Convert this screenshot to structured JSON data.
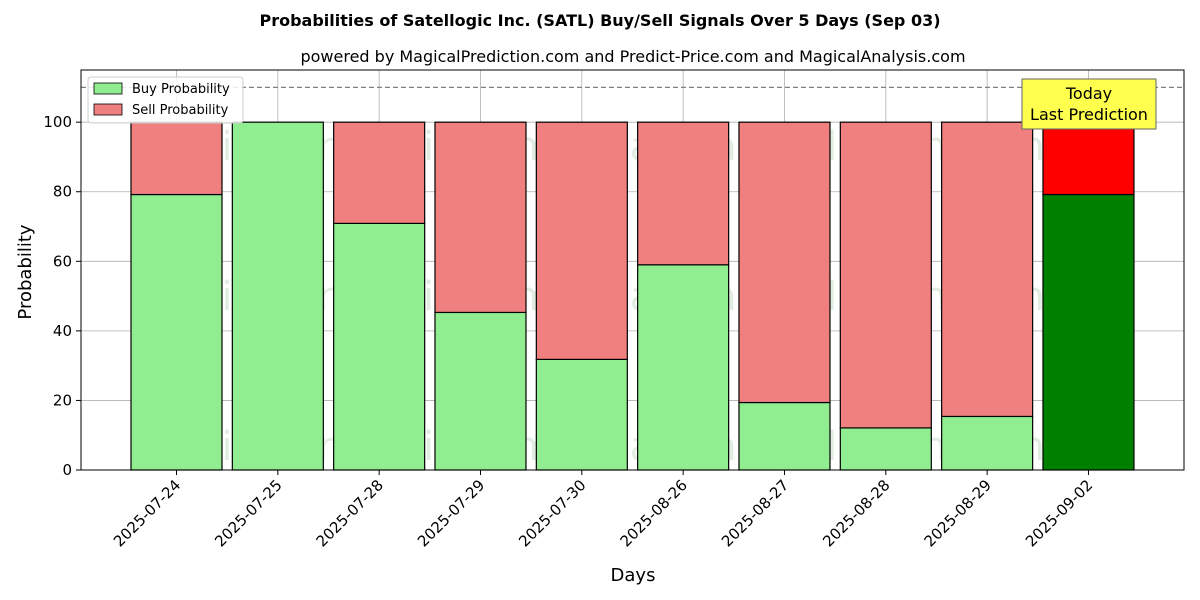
{
  "chart_data": {
    "type": "bar",
    "stacked": true,
    "title": "Probabilities of Satellogic Inc. (SATL) Buy/Sell Signals Over 5 Days (Sep 03)",
    "subtitle": "powered by MagicalPrediction.com and Predict-Price.com and MagicalAnalysis.com",
    "xlabel": "Days",
    "ylabel": "Probability",
    "ylim": [
      0,
      115
    ],
    "yticks": [
      0,
      20,
      40,
      60,
      80,
      100
    ],
    "grid": true,
    "legend_position": "top-left",
    "reference_line": 110,
    "categories": [
      "2025-07-24",
      "2025-07-25",
      "2025-07-28",
      "2025-07-29",
      "2025-07-30",
      "2025-08-26",
      "2025-08-27",
      "2025-08-28",
      "2025-08-29",
      "2025-09-02"
    ],
    "series": [
      {
        "name": "Buy Probability",
        "values": [
          79.2,
          100,
          70.9,
          45.3,
          31.8,
          59.0,
          19.4,
          12.1,
          15.4,
          79.2
        ],
        "color": "#90ee90",
        "highlight_color": "#008000"
      },
      {
        "name": "Sell Probability",
        "values": [
          20.8,
          0,
          29.1,
          54.7,
          68.2,
          41.0,
          80.6,
          87.9,
          84.6,
          20.8
        ],
        "color": "#f08080",
        "highlight_color": "#ff0000"
      }
    ],
    "highlight_index": 9,
    "annotation": {
      "line1": "Today",
      "line2": "Last Prediction",
      "background": "#ffff4d"
    },
    "watermarks": [
      "MagicalAnalysis.com",
      "MagicalPrediction.com"
    ]
  }
}
